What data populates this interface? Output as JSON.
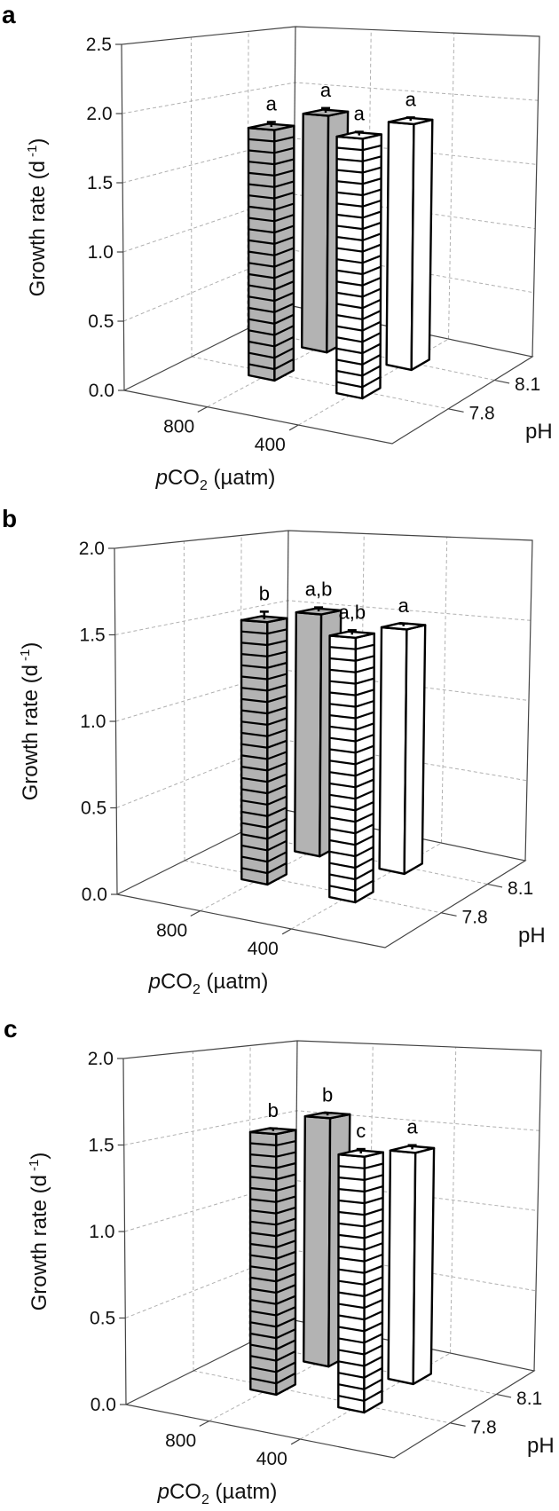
{
  "colors": {
    "gray_fill": "#b3b3b3",
    "white_fill": "#ffffff",
    "outline": "#000000",
    "grid": "#b0b0b0",
    "axis": "#444444"
  },
  "chart_data": [
    {
      "panel": "a",
      "type": "bar3d",
      "ylabel": {
        "text": "Growth rate (d",
        "sup": "-1",
        "close": ")"
      },
      "xlabel": {
        "italic": "p",
        "main": "CO",
        "sub": "2",
        "rest": " (µatm)"
      },
      "zlabel": "pH",
      "ylim": [
        0,
        2.5
      ],
      "yticks": [
        "0.0",
        "0.5",
        "1.0",
        "1.5",
        "2.0",
        "2.5"
      ],
      "x_categories": [
        "800",
        "400"
      ],
      "z_categories": [
        "7.8",
        "8.1"
      ],
      "grid": true,
      "bars": [
        {
          "pco2": "800",
          "pH": "8.1",
          "value": 1.87,
          "error": 0.03,
          "letter": "a",
          "fill": "gray",
          "pattern": "solid"
        },
        {
          "pco2": "400",
          "pH": "8.1",
          "value": 1.86,
          "error": 0.02,
          "letter": "a",
          "fill": "white",
          "pattern": "solid"
        },
        {
          "pco2": "800",
          "pH": "7.8",
          "value": 1.85,
          "error": 0.03,
          "letter": "a",
          "fill": "gray",
          "pattern": "striped"
        },
        {
          "pco2": "400",
          "pH": "7.8",
          "value": 1.84,
          "error": 0.02,
          "letter": "a",
          "fill": "white",
          "pattern": "striped"
        }
      ]
    },
    {
      "panel": "b",
      "type": "bar3d",
      "ylabel": {
        "text": "Growth rate (d",
        "sup": "-1",
        "close": ")"
      },
      "xlabel": {
        "italic": "p",
        "main": "CO",
        "sub": "2",
        "rest": " (µatm)"
      },
      "zlabel": "pH",
      "ylim": [
        0,
        2.0
      ],
      "yticks": [
        "0.0",
        "0.5",
        "1.0",
        "1.5",
        "2.0"
      ],
      "x_categories": [
        "800",
        "400"
      ],
      "z_categories": [
        "7.8",
        "8.1"
      ],
      "grid": true,
      "bars": [
        {
          "pco2": "800",
          "pH": "8.1",
          "value": 1.53,
          "error": 0.02,
          "letter": "a,b",
          "fill": "gray",
          "pattern": "solid"
        },
        {
          "pco2": "400",
          "pH": "8.1",
          "value": 1.48,
          "error": 0.01,
          "letter": "a",
          "fill": "white",
          "pattern": "solid"
        },
        {
          "pco2": "800",
          "pH": "7.8",
          "value": 1.55,
          "error": 0.04,
          "letter": "b",
          "fill": "gray",
          "pattern": "striped"
        },
        {
          "pco2": "400",
          "pH": "7.8",
          "value": 1.5,
          "error": 0.02,
          "letter": "a,b",
          "fill": "white",
          "pattern": "striped"
        }
      ]
    },
    {
      "panel": "c",
      "type": "bar3d",
      "ylabel": {
        "text": "Growth rate (d",
        "sup": "-1",
        "close": ")"
      },
      "xlabel": {
        "italic": "p",
        "main": "CO",
        "sub": "2",
        "rest": " (µatm)"
      },
      "zlabel": "pH",
      "ylim": [
        0,
        2.0
      ],
      "yticks": [
        "0.0",
        "0.5",
        "1.0",
        "1.5",
        "2.0"
      ],
      "x_categories": [
        "800",
        "400"
      ],
      "z_categories": [
        "7.8",
        "8.1"
      ],
      "grid": true,
      "bars": [
        {
          "pco2": "800",
          "pH": "8.1",
          "value": 1.57,
          "error": 0.01,
          "letter": "b",
          "fill": "gray",
          "pattern": "solid"
        },
        {
          "pco2": "400",
          "pH": "8.1",
          "value": 1.4,
          "error": 0.02,
          "letter": "a",
          "fill": "white",
          "pattern": "solid"
        },
        {
          "pco2": "800",
          "pH": "7.8",
          "value": 1.54,
          "error": 0.01,
          "letter": "b",
          "fill": "gray",
          "pattern": "striped"
        },
        {
          "pco2": "400",
          "pH": "7.8",
          "value": 1.45,
          "error": 0.02,
          "letter": "c",
          "fill": "white",
          "pattern": "striped"
        }
      ]
    }
  ]
}
